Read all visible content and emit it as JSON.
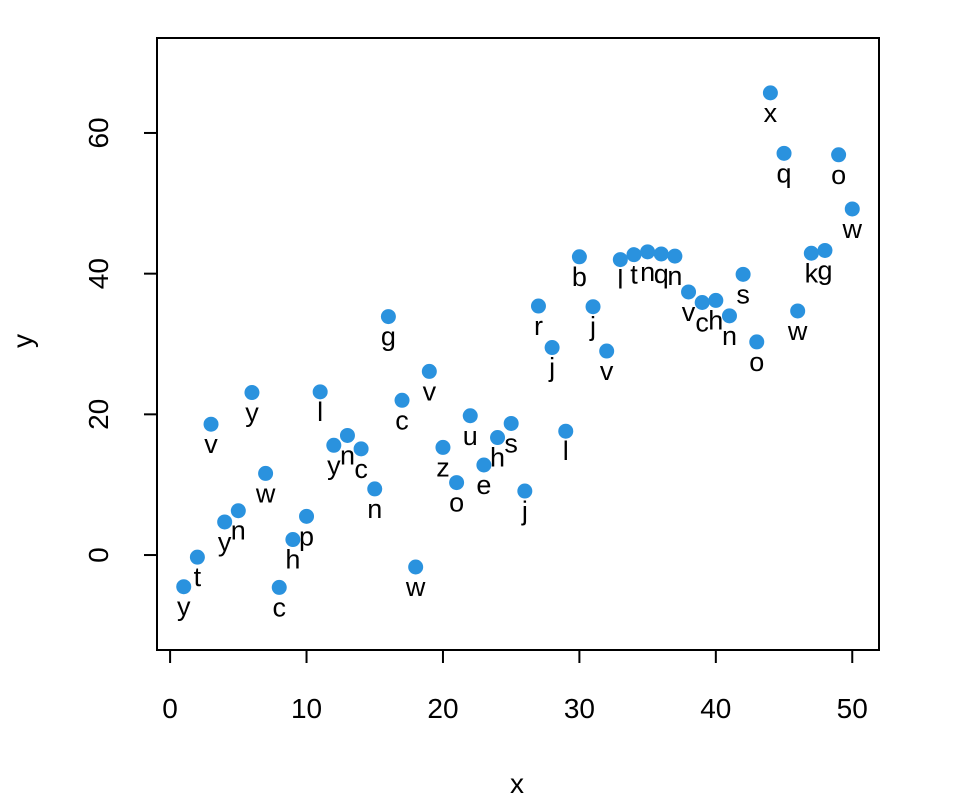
{
  "chart_data": {
    "type": "scatter",
    "xlabel": "x",
    "ylabel": "y",
    "xlim": [
      -0.96,
      51.96
    ],
    "ylim": [
      -13.5,
      73.5
    ],
    "x_ticks": [
      0,
      10,
      20,
      30,
      40,
      50
    ],
    "y_ticks": [
      0,
      20,
      40,
      60
    ],
    "x_tick_labels": [
      "0",
      "10",
      "20",
      "30",
      "40",
      "50"
    ],
    "y_tick_labels": [
      "0",
      "20",
      "40",
      "60"
    ],
    "grid": false,
    "legend": "none",
    "point_color": "#2a92de",
    "points": [
      {
        "x": 1,
        "y": -4.5,
        "label": "y"
      },
      {
        "x": 2,
        "y": -0.3,
        "label": "t"
      },
      {
        "x": 3,
        "y": 18.6,
        "label": "v"
      },
      {
        "x": 4,
        "y": 4.7,
        "label": "y"
      },
      {
        "x": 5,
        "y": 6.3,
        "label": "n"
      },
      {
        "x": 6,
        "y": 23.1,
        "label": "y"
      },
      {
        "x": 7,
        "y": 11.6,
        "label": "w"
      },
      {
        "x": 8,
        "y": -4.6,
        "label": "c"
      },
      {
        "x": 9,
        "y": 2.2,
        "label": "h"
      },
      {
        "x": 10,
        "y": 5.5,
        "label": "p"
      },
      {
        "x": 11,
        "y": 23.2,
        "label": "l"
      },
      {
        "x": 12,
        "y": 15.6,
        "label": "y"
      },
      {
        "x": 13,
        "y": 17.0,
        "label": "n"
      },
      {
        "x": 14,
        "y": 15.1,
        "label": "c"
      },
      {
        "x": 15,
        "y": 9.4,
        "label": "n"
      },
      {
        "x": 16,
        "y": 33.9,
        "label": "g"
      },
      {
        "x": 17,
        "y": 22.0,
        "label": "c"
      },
      {
        "x": 18,
        "y": -1.7,
        "label": "w"
      },
      {
        "x": 19,
        "y": 26.1,
        "label": "v"
      },
      {
        "x": 20,
        "y": 15.3,
        "label": "z"
      },
      {
        "x": 21,
        "y": 10.3,
        "label": "o"
      },
      {
        "x": 22,
        "y": 19.8,
        "label": "u"
      },
      {
        "x": 23,
        "y": 12.8,
        "label": "e"
      },
      {
        "x": 24,
        "y": 16.7,
        "label": "h"
      },
      {
        "x": 25,
        "y": 18.7,
        "label": "s"
      },
      {
        "x": 26,
        "y": 9.1,
        "label": "j"
      },
      {
        "x": 27,
        "y": 35.4,
        "label": "r"
      },
      {
        "x": 28,
        "y": 29.5,
        "label": "j"
      },
      {
        "x": 29,
        "y": 17.6,
        "label": "l"
      },
      {
        "x": 30,
        "y": 42.4,
        "label": "b"
      },
      {
        "x": 31,
        "y": 35.3,
        "label": "j"
      },
      {
        "x": 32,
        "y": 29.0,
        "label": "v"
      },
      {
        "x": 33,
        "y": 42.0,
        "label": "l"
      },
      {
        "x": 34,
        "y": 42.7,
        "label": "t"
      },
      {
        "x": 35,
        "y": 43.1,
        "label": "n"
      },
      {
        "x": 36,
        "y": 42.8,
        "label": "q"
      },
      {
        "x": 37,
        "y": 42.5,
        "label": "n"
      },
      {
        "x": 38,
        "y": 37.4,
        "label": "v"
      },
      {
        "x": 39,
        "y": 35.9,
        "label": "c"
      },
      {
        "x": 40,
        "y": 36.2,
        "label": "h"
      },
      {
        "x": 41,
        "y": 34.0,
        "label": "n"
      },
      {
        "x": 42,
        "y": 39.9,
        "label": "s"
      },
      {
        "x": 43,
        "y": 30.3,
        "label": "o"
      },
      {
        "x": 44,
        "y": 65.7,
        "label": "x"
      },
      {
        "x": 45,
        "y": 57.1,
        "label": "q"
      },
      {
        "x": 46,
        "y": 34.7,
        "label": "w"
      },
      {
        "x": 47,
        "y": 42.9,
        "label": "k"
      },
      {
        "x": 48,
        "y": 43.3,
        "label": "g"
      },
      {
        "x": 49,
        "y": 56.9,
        "label": "o"
      },
      {
        "x": 50,
        "y": 49.2,
        "label": "w"
      }
    ]
  }
}
